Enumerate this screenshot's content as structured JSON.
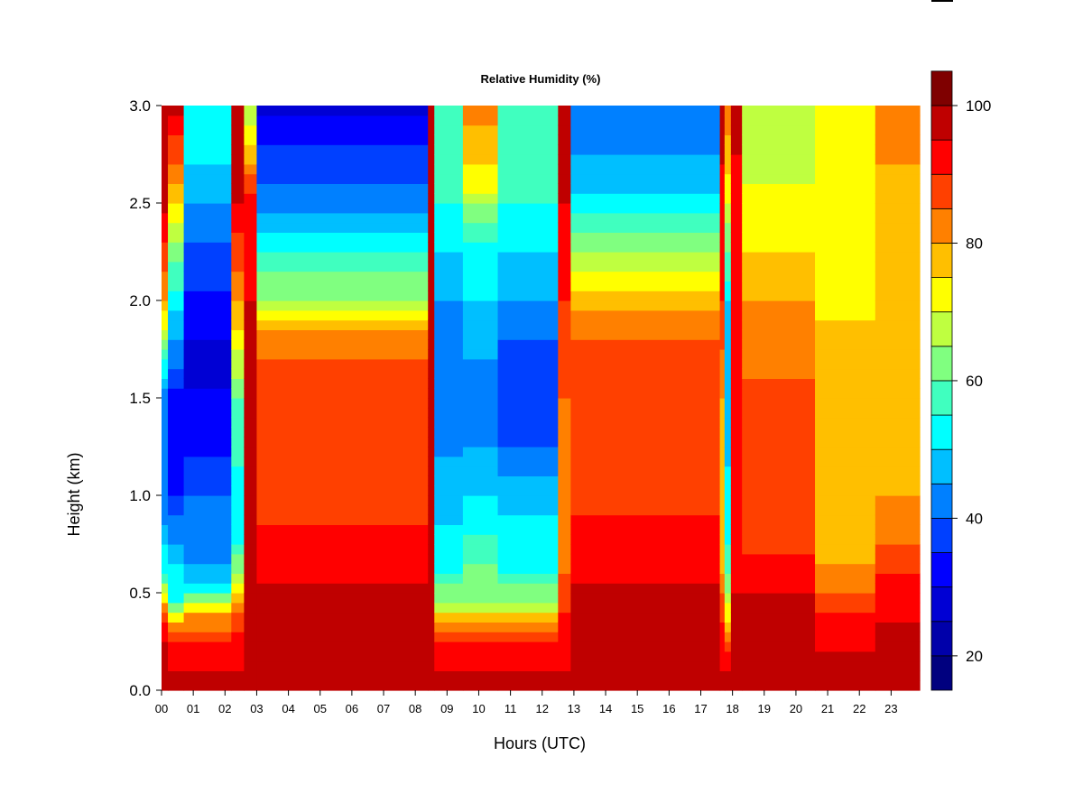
{
  "chart_data": {
    "type": "heatmap",
    "title": "Relative Humidity (%)",
    "xlabel": "Hours (UTC)",
    "ylabel": "Height (km)",
    "xlim": [
      0,
      23.9
    ],
    "ylim": [
      0.0,
      3.0
    ],
    "x_ticks": [
      "00",
      "01",
      "02",
      "03",
      "04",
      "05",
      "06",
      "07",
      "08",
      "09",
      "10",
      "11",
      "12",
      "13",
      "14",
      "15",
      "16",
      "17",
      "18",
      "19",
      "20",
      "21",
      "22",
      "23"
    ],
    "y_ticks": [
      "0.0",
      "0.5",
      "1.0",
      "1.5",
      "2.0",
      "2.5",
      "3.0"
    ],
    "y_tick_values": [
      0.0,
      0.5,
      1.0,
      1.5,
      2.0,
      2.5,
      3.0
    ],
    "colorbar": {
      "range": [
        15,
        100
      ],
      "step": 5,
      "ticks": [
        "20",
        "40",
        "60",
        "80",
        "100"
      ],
      "tick_values": [
        20,
        40,
        60,
        80,
        100
      ],
      "colors": [
        "#00007F",
        "#0000AA",
        "#0000D4",
        "#0000FF",
        "#0040FF",
        "#0080FF",
        "#00BFFF",
        "#00FFFF",
        "#40FFBF",
        "#80FF80",
        "#BFFF40",
        "#FFFF00",
        "#FFBF00",
        "#FF8000",
        "#FF4000",
        "#FF0000",
        "#BF0000",
        "#7F0000"
      ]
    },
    "grid": false,
    "legend": "colorbar-right",
    "regimes": [
      {
        "hours": [
          0.0,
          0.2
        ],
        "profile": [
          [
            0,
            97
          ],
          [
            0.25,
            96
          ],
          [
            0.4,
            85
          ],
          [
            0.6,
            55
          ],
          [
            1.0,
            40
          ],
          [
            1.5,
            40
          ],
          [
            2.0,
            80
          ],
          [
            2.5,
            97
          ],
          [
            3.0,
            97
          ]
        ]
      },
      {
        "hours": [
          0.2,
          0.7
        ],
        "profile": [
          [
            0,
            97
          ],
          [
            0.22,
            92
          ],
          [
            0.35,
            80
          ],
          [
            0.45,
            55
          ],
          [
            0.7,
            48
          ],
          [
            1.0,
            35
          ],
          [
            1.5,
            34
          ],
          [
            1.8,
            45
          ],
          [
            2.2,
            60
          ],
          [
            2.6,
            80
          ],
          [
            3.0,
            97
          ]
        ]
      },
      {
        "hours": [
          0.7,
          2.2
        ],
        "profile": [
          [
            0,
            97
          ],
          [
            0.22,
            92
          ],
          [
            0.38,
            80
          ],
          [
            0.5,
            55
          ],
          [
            0.6,
            46
          ],
          [
            1.0,
            40
          ],
          [
            1.3,
            33
          ],
          [
            1.7,
            28
          ],
          [
            2.2,
            38
          ],
          [
            2.6,
            48
          ],
          [
            3.0,
            55
          ]
        ]
      },
      {
        "hours": [
          2.2,
          2.6
        ],
        "profile": [
          [
            0,
            97
          ],
          [
            0.3,
            92
          ],
          [
            0.5,
            75
          ],
          [
            0.8,
            50
          ],
          [
            1.5,
            60
          ],
          [
            2.0,
            80
          ],
          [
            2.5,
            95
          ],
          [
            3.0,
            97
          ]
        ]
      },
      {
        "hours": [
          2.6,
          3.0
        ],
        "profile": [
          [
            0,
            97
          ],
          [
            0.5,
            97
          ],
          [
            1.0,
            97
          ],
          [
            1.5,
            96
          ],
          [
            2.0,
            95
          ],
          [
            2.5,
            92
          ],
          [
            3.0,
            65
          ]
        ]
      },
      {
        "hours": [
          3.0,
          8.4
        ],
        "profile": [
          [
            0,
            97
          ],
          [
            0.5,
            96
          ],
          [
            0.7,
            93
          ],
          [
            1.0,
            87
          ],
          [
            1.7,
            86
          ],
          [
            1.85,
            80
          ],
          [
            2.0,
            66
          ],
          [
            2.3,
            52
          ],
          [
            2.5,
            42
          ],
          [
            2.8,
            35
          ],
          [
            3.0,
            28
          ]
        ]
      },
      {
        "hours": [
          8.4,
          8.6
        ],
        "profile": [
          [
            0,
            97
          ],
          [
            1.0,
            97
          ],
          [
            2.0,
            96
          ],
          [
            3.0,
            96
          ]
        ]
      },
      {
        "hours": [
          8.6,
          9.5
        ],
        "profile": [
          [
            0,
            97
          ],
          [
            0.22,
            92
          ],
          [
            0.35,
            80
          ],
          [
            0.45,
            65
          ],
          [
            0.6,
            55
          ],
          [
            1.0,
            47
          ],
          [
            1.3,
            44
          ],
          [
            1.7,
            40
          ],
          [
            2.0,
            45
          ],
          [
            2.5,
            55
          ],
          [
            3.0,
            55
          ]
        ]
      },
      {
        "hours": [
          9.5,
          10.6
        ],
        "profile": [
          [
            0,
            97
          ],
          [
            0.22,
            92
          ],
          [
            0.35,
            80
          ],
          [
            0.45,
            65
          ],
          [
            0.7,
            58
          ],
          [
            1.0,
            50
          ],
          [
            1.3,
            44
          ],
          [
            1.7,
            45
          ],
          [
            2.0,
            50
          ],
          [
            2.3,
            55
          ],
          [
            2.6,
            72
          ],
          [
            3.0,
            82
          ]
        ]
      },
      {
        "hours": [
          10.6,
          12.5
        ],
        "profile": [
          [
            0,
            97
          ],
          [
            0.22,
            92
          ],
          [
            0.35,
            80
          ],
          [
            0.45,
            65
          ],
          [
            0.6,
            55
          ],
          [
            1.0,
            48
          ],
          [
            1.3,
            38
          ],
          [
            1.6,
            35
          ],
          [
            2.0,
            45
          ],
          [
            2.5,
            55
          ],
          [
            3.0,
            55
          ]
        ]
      },
      {
        "hours": [
          12.5,
          12.9
        ],
        "profile": [
          [
            0,
            97
          ],
          [
            0.3,
            92
          ],
          [
            0.8,
            80
          ],
          [
            1.5,
            85
          ],
          [
            2.0,
            90
          ],
          [
            2.5,
            95
          ],
          [
            3.0,
            97
          ]
        ]
      },
      {
        "hours": [
          12.9,
          17.6
        ],
        "profile": [
          [
            0,
            97
          ],
          [
            0.5,
            96
          ],
          [
            0.7,
            93
          ],
          [
            1.0,
            88
          ],
          [
            1.7,
            88
          ],
          [
            2.0,
            78
          ],
          [
            2.3,
            62
          ],
          [
            2.6,
            48
          ],
          [
            3.0,
            40
          ]
        ]
      },
      {
        "hours": [
          17.6,
          17.75
        ],
        "profile": [
          [
            0,
            97
          ],
          [
            0.3,
            92
          ],
          [
            0.6,
            80
          ],
          [
            1.0,
            75
          ],
          [
            1.5,
            80
          ],
          [
            2.0,
            90
          ],
          [
            3.0,
            97
          ]
        ]
      },
      {
        "hours": [
          17.75,
          17.95
        ],
        "profile": [
          [
            0,
            97
          ],
          [
            0.2,
            92
          ],
          [
            0.3,
            80
          ],
          [
            0.5,
            65
          ],
          [
            0.8,
            52
          ],
          [
            1.5,
            48
          ],
          [
            2.0,
            50
          ],
          [
            2.5,
            70
          ],
          [
            3.0,
            85
          ]
        ]
      },
      {
        "hours": [
          17.95,
          18.3
        ],
        "profile": [
          [
            0,
            97
          ],
          [
            0.5,
            95
          ],
          [
            1.0,
            92
          ],
          [
            1.5,
            92
          ],
          [
            2.0,
            90
          ],
          [
            2.5,
            94
          ],
          [
            3.0,
            96
          ]
        ]
      },
      {
        "hours": [
          18.3,
          20.6
        ],
        "profile": [
          [
            0,
            97
          ],
          [
            0.5,
            95
          ],
          [
            0.7,
            90
          ],
          [
            1.0,
            88
          ],
          [
            1.5,
            86
          ],
          [
            2.0,
            80
          ],
          [
            2.3,
            74
          ],
          [
            2.6,
            70
          ],
          [
            3.0,
            68
          ]
        ]
      },
      {
        "hours": [
          20.6,
          22.5
        ],
        "profile": [
          [
            0,
            97
          ],
          [
            0.35,
            93
          ],
          [
            0.5,
            85
          ],
          [
            0.7,
            78
          ],
          [
            1.0,
            80
          ],
          [
            1.5,
            78
          ],
          [
            2.0,
            74
          ],
          [
            2.5,
            70
          ],
          [
            3.0,
            70
          ]
        ]
      },
      {
        "hours": [
          22.5,
          23.9
        ],
        "profile": [
          [
            0,
            97
          ],
          [
            0.5,
            94
          ],
          [
            0.7,
            86
          ],
          [
            1.0,
            80
          ],
          [
            1.5,
            78
          ],
          [
            2.0,
            76
          ],
          [
            2.5,
            77
          ],
          [
            3.0,
            85
          ]
        ]
      }
    ]
  }
}
